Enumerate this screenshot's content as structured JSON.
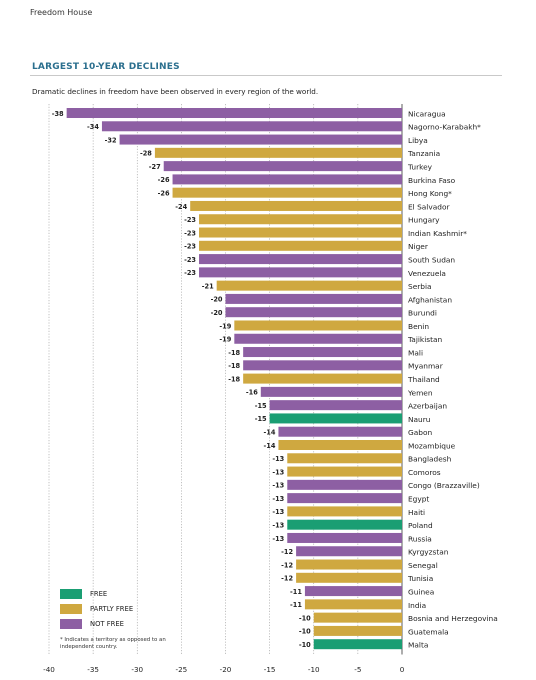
{
  "header": {
    "source": "Freedom House",
    "section_title": "LARGEST 10-YEAR DECLINES",
    "subtitle": "Dramatic declines in freedom have been observed in every region of the world."
  },
  "legend": {
    "items": [
      {
        "label": "FREE",
        "status": "free"
      },
      {
        "label": "PARTLY FREE",
        "status": "partly"
      },
      {
        "label": "NOT FREE",
        "status": "not"
      }
    ],
    "note": "* Indicates a territory as opposed to an independent country."
  },
  "colors": {
    "free": "#1a9e73",
    "partly": "#cfa840",
    "not": "#8d5fa3"
  },
  "chart_data": {
    "type": "bar",
    "orientation": "horizontal",
    "xlim": [
      -40,
      0
    ],
    "xticks": [
      -40,
      -35,
      -30,
      -25,
      -20,
      -15,
      -10,
      -5,
      0
    ],
    "grid": true,
    "legend_position": "bottom-left",
    "bars": [
      {
        "category": "Nicaragua",
        "value": -38,
        "status": "not"
      },
      {
        "category": "Nagorno-Karabakh*",
        "value": -34,
        "status": "not"
      },
      {
        "category": "Libya",
        "value": -32,
        "status": "not"
      },
      {
        "category": "Tanzania",
        "value": -28,
        "status": "partly"
      },
      {
        "category": "Turkey",
        "value": -27,
        "status": "not"
      },
      {
        "category": "Burkina Faso",
        "value": -26,
        "status": "not"
      },
      {
        "category": "Hong Kong*",
        "value": -26,
        "status": "partly"
      },
      {
        "category": "El Salvador",
        "value": -24,
        "status": "partly"
      },
      {
        "category": "Hungary",
        "value": -23,
        "status": "partly"
      },
      {
        "category": "Indian Kashmir*",
        "value": -23,
        "status": "partly"
      },
      {
        "category": "Niger",
        "value": -23,
        "status": "partly"
      },
      {
        "category": "South Sudan",
        "value": -23,
        "status": "not"
      },
      {
        "category": "Venezuela",
        "value": -23,
        "status": "not"
      },
      {
        "category": "Serbia",
        "value": -21,
        "status": "partly"
      },
      {
        "category": "Afghanistan",
        "value": -20,
        "status": "not"
      },
      {
        "category": "Burundi",
        "value": -20,
        "status": "not"
      },
      {
        "category": "Benin",
        "value": -19,
        "status": "partly"
      },
      {
        "category": "Tajikistan",
        "value": -19,
        "status": "not"
      },
      {
        "category": "Mali",
        "value": -18,
        "status": "not"
      },
      {
        "category": "Myanmar",
        "value": -18,
        "status": "not"
      },
      {
        "category": "Thailand",
        "value": -18,
        "status": "partly"
      },
      {
        "category": "Yemen",
        "value": -16,
        "status": "not"
      },
      {
        "category": "Azerbaijan",
        "value": -15,
        "status": "not"
      },
      {
        "category": "Nauru",
        "value": -15,
        "status": "free"
      },
      {
        "category": "Gabon",
        "value": -14,
        "status": "not"
      },
      {
        "category": "Mozambique",
        "value": -14,
        "status": "partly"
      },
      {
        "category": "Bangladesh",
        "value": -13,
        "status": "partly"
      },
      {
        "category": "Comoros",
        "value": -13,
        "status": "partly"
      },
      {
        "category": "Congo (Brazzaville)",
        "value": -13,
        "status": "not"
      },
      {
        "category": "Egypt",
        "value": -13,
        "status": "not"
      },
      {
        "category": "Haiti",
        "value": -13,
        "status": "partly"
      },
      {
        "category": "Poland",
        "value": -13,
        "status": "free"
      },
      {
        "category": "Russia",
        "value": -13,
        "status": "not"
      },
      {
        "category": "Kyrgyzstan",
        "value": -12,
        "status": "not"
      },
      {
        "category": "Senegal",
        "value": -12,
        "status": "partly"
      },
      {
        "category": "Tunisia",
        "value": -12,
        "status": "partly"
      },
      {
        "category": "Guinea",
        "value": -11,
        "status": "not"
      },
      {
        "category": "India",
        "value": -11,
        "status": "partly"
      },
      {
        "category": "Bosnia and Herzegovina",
        "value": -10,
        "status": "partly"
      },
      {
        "category": "Guatemala",
        "value": -10,
        "status": "partly"
      },
      {
        "category": "Malta",
        "value": -10,
        "status": "free"
      }
    ]
  }
}
